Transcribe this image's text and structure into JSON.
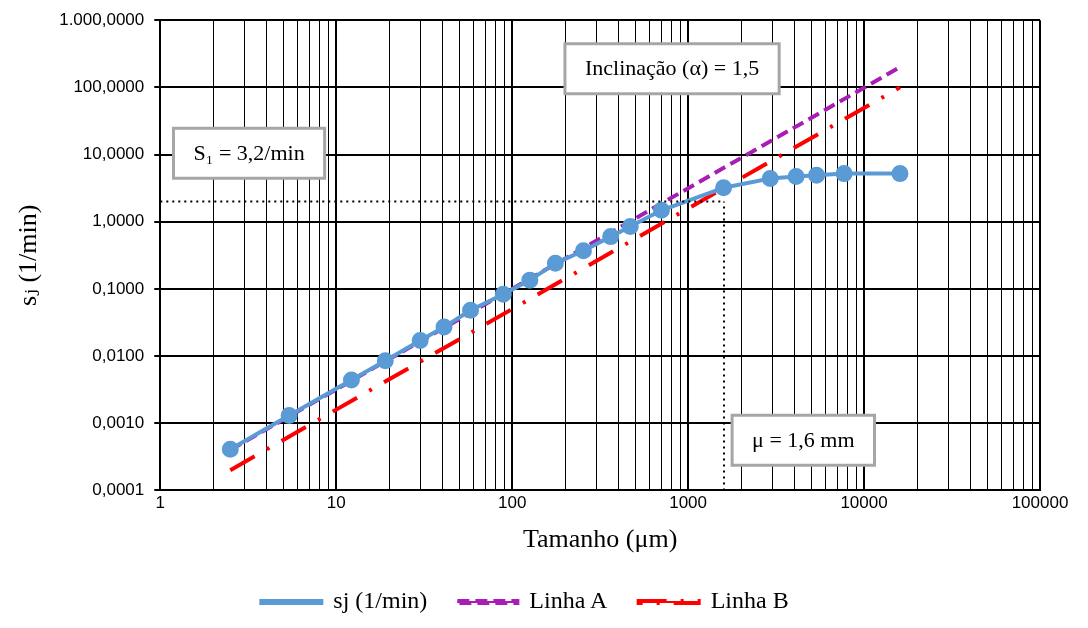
{
  "chart_data": {
    "type": "line",
    "xlabel": "Tamanho (μm)",
    "ylabel": "sⱼ (1/min)",
    "log": "xy",
    "grid": true,
    "legend": "bottom",
    "xlim": [
      1,
      100000
    ],
    "xticks": [
      1,
      10,
      100,
      1000,
      10000,
      100000
    ],
    "ylim": [
      0.0001,
      1000
    ],
    "yticks": [
      {
        "value": 0.0001,
        "label": "0,0001"
      },
      {
        "value": 0.001,
        "label": "0,0010"
      },
      {
        "value": 0.01,
        "label": "0,0100"
      },
      {
        "value": 0.1,
        "label": "0,1000"
      },
      {
        "value": 1,
        "label": "1,0000"
      },
      {
        "value": 10,
        "label": "10,0000"
      },
      {
        "value": 100,
        "label": "100,0000"
      },
      {
        "value": 1000,
        "label": "1.000,0000"
      }
    ],
    "series": [
      {
        "name": "sj (1/min)",
        "color": "#5b9bd5",
        "marker": "circle",
        "line_style": "solid",
        "x": [
          2.5,
          5.4,
          12.2,
          19,
          30,
          41,
          58,
          89,
          126,
          176,
          254,
          363,
          469,
          705,
          1590,
          2930,
          4110,
          5370,
          7700,
          16000
        ],
        "values": [
          0.00041,
          0.0013,
          0.0044,
          0.0085,
          0.017,
          0.027,
          0.048,
          0.083,
          0.135,
          0.24,
          0.37,
          0.6,
          0.85,
          1.48,
          3.2,
          4.4,
          4.7,
          4.9,
          5.2,
          5.2
        ]
      },
      {
        "name": "Linha A",
        "color": "#a81db5",
        "marker": "none",
        "line_style": "dashed",
        "x": [
          2.5,
          16000
        ],
        "values": [
          0.0004,
          200
        ]
      },
      {
        "name": "Linha B",
        "color": "#ff0000",
        "marker": "none",
        "line_style": "dashdot",
        "x": [
          2.5,
          16000
        ],
        "values": [
          0.0002,
          100
        ]
      }
    ],
    "ref_lines": [
      {
        "axis": "y",
        "value": 2,
        "color": "#000000",
        "line_style": "dotted"
      },
      {
        "axis": "x",
        "value": 1600,
        "color": "#000000",
        "line_style": "dotted"
      }
    ],
    "annotations": [
      "Inclinação (α) = 1,5",
      "S₁ = 3,2/min",
      "μ = 1,6 mm"
    ]
  }
}
